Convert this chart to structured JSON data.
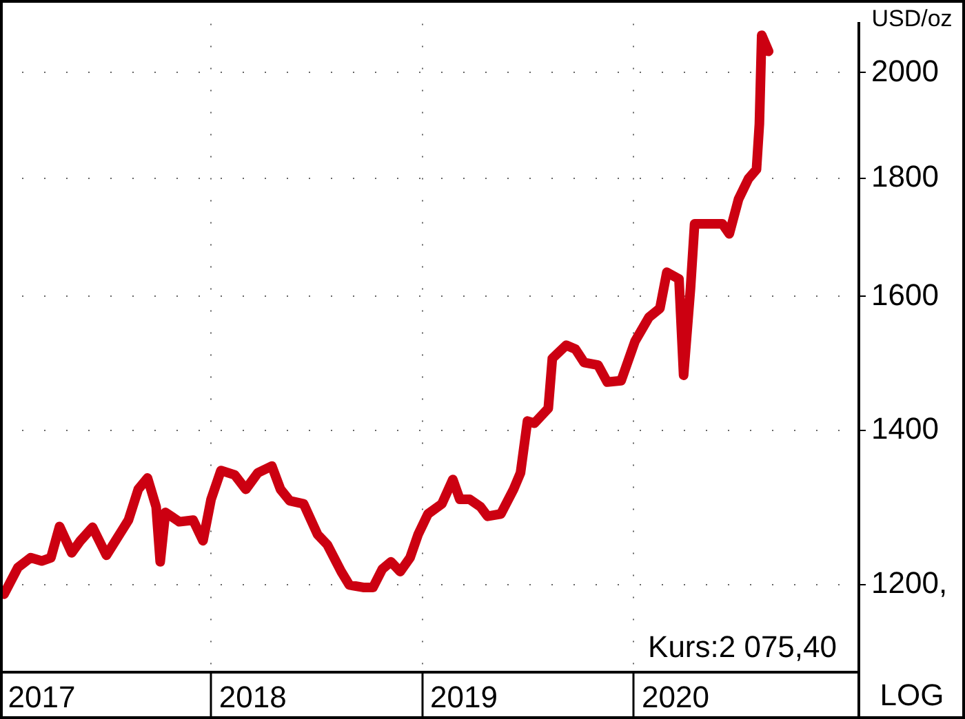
{
  "chart_data": {
    "type": "line",
    "ylabel": "USD/oz",
    "annotations": [
      "Kurs:2 075,40",
      "LOG"
    ],
    "x": [
      "2017-01-08",
      "2017-02-01",
      "2017-02-23",
      "2017-03-14",
      "2017-03-30",
      "2017-04-14",
      "2017-05-05",
      "2017-05-20",
      "2017-06-10",
      "2017-07-04",
      "2017-07-18",
      "2017-08-11",
      "2017-08-28",
      "2017-09-13",
      "2017-09-28",
      "2017-10-05",
      "2017-10-14",
      "2017-11-07",
      "2017-12-01",
      "2017-12-18",
      "2018-01-01",
      "2018-01-18",
      "2018-02-11",
      "2018-03-02",
      "2018-03-23",
      "2018-04-16",
      "2018-05-01",
      "2018-05-17",
      "2018-06-10",
      "2018-07-04",
      "2018-07-21",
      "2018-08-14",
      "2018-08-28",
      "2018-09-21",
      "2018-10-08",
      "2018-10-24",
      "2018-11-08",
      "2018-11-24",
      "2018-12-11",
      "2018-12-25",
      "2019-01-11",
      "2019-02-04",
      "2019-02-23",
      "2019-03-07",
      "2019-03-24",
      "2019-04-12",
      "2019-04-24",
      "2019-05-17",
      "2019-06-08",
      "2019-06-20",
      "2019-07-02",
      "2019-07-14",
      "2019-08-07",
      "2019-08-14",
      "2019-09-07",
      "2019-09-23",
      "2019-10-08",
      "2019-11-01",
      "2019-11-17",
      "2019-12-11",
      "2020-01-04",
      "2020-01-28",
      "2020-02-16",
      "2020-02-28",
      "2020-03-20",
      "2020-03-28",
      "2020-04-09",
      "2020-04-16",
      "2020-05-10",
      "2020-06-03",
      "2020-06-15",
      "2020-07-01",
      "2020-07-18",
      "2020-08-01",
      "2020-08-06",
      "2020-08-10",
      "2020-08-22"
    ],
    "series": [
      {
        "color": "#cc0011",
        "values": [
          1189,
          1221,
          1233,
          1229,
          1233,
          1272,
          1239,
          1254,
          1271,
          1236,
          1252,
          1280,
          1320,
          1335,
          1297,
          1228,
          1290,
          1278,
          1280,
          1254,
          1307,
          1345,
          1339,
          1320,
          1342,
          1351,
          1320,
          1305,
          1301,
          1262,
          1249,
          1216,
          1200,
          1197,
          1197,
          1219,
          1228,
          1216,
          1233,
          1262,
          1288,
          1301,
          1333,
          1307,
          1307,
          1297,
          1285,
          1288,
          1320,
          1342,
          1413,
          1410,
          1431,
          1504,
          1524,
          1518,
          1498,
          1494,
          1469,
          1471,
          1530,
          1567,
          1581,
          1639,
          1628,
          1479,
          1614,
          1720,
          1720,
          1720,
          1703,
          1763,
          1799,
          1816,
          1900,
          2076,
          2043
        ]
      }
    ],
    "xlim": [
      "2017-01-01",
      "2021-01-25"
    ],
    "xticks": [
      {
        "value": "2017-01-01",
        "label": null
      },
      {
        "value": "2017-03-14",
        "label": "2017"
      },
      {
        "value": "2018-01-01",
        "label": null
      },
      {
        "value": "2018-03-14",
        "label": "2018"
      },
      {
        "value": "2019-01-01",
        "label": null
      },
      {
        "value": "2019-03-14",
        "label": "2019"
      },
      {
        "value": "2020-01-01",
        "label": null
      },
      {
        "value": "2020-03-14",
        "label": "2020"
      }
    ],
    "ylim": [
      1100,
      2100
    ],
    "yticks": [
      {
        "value": 1200,
        "label": "1200,"
      },
      1400,
      1600,
      1800,
      2000
    ],
    "log": "y",
    "grid": true,
    "legend": false,
    "marker": "none",
    "line_style": "solid"
  }
}
